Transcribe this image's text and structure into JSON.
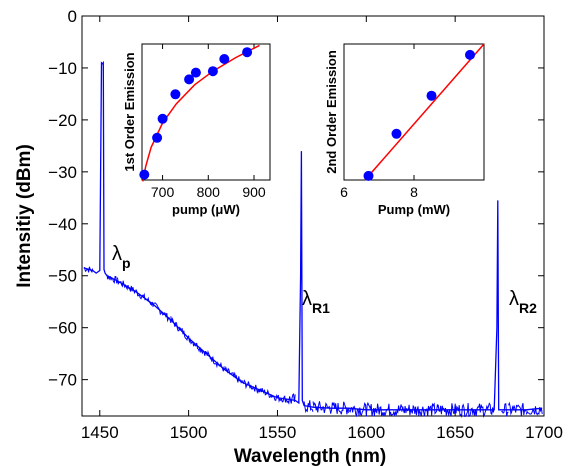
{
  "chart_data": [
    {
      "type": "line",
      "xlabel": "Wavelength (nm)",
      "ylabel": "Intensitiy (dBm)",
      "xlim": [
        1440,
        1700
      ],
      "ylim": [
        -77,
        0
      ],
      "xticks": [
        1450,
        1500,
        1550,
        1600,
        1650,
        1700
      ],
      "yticks": [
        0,
        -10,
        -20,
        -30,
        -40,
        -50,
        -60,
        -70
      ],
      "xtick_labels": [
        "1450",
        "1500",
        "1550",
        "1600",
        "1650",
        "1700"
      ],
      "ytick_labels": [
        "0",
        "−10",
        "−20",
        "−30",
        "−40",
        "−50",
        "−60",
        "−70"
      ],
      "line_color": "#0000ff",
      "series": [
        {
          "x": [
            1441,
            1446,
            1448,
            1450,
            1451,
            1451.6,
            1452,
            1452.4,
            1453,
            1454,
            1460,
            1470,
            1480,
            1490,
            1500,
            1510,
            1520,
            1530,
            1540,
            1550,
            1560,
            1562,
            1563,
            1563.5,
            1564,
            1565,
            1570,
            1580,
            1590,
            1600,
            1620,
            1640,
            1660,
            1672,
            1673.5,
            1674,
            1674.5,
            1676,
            1680,
            1690,
            1699
          ],
          "y": [
            -48.5,
            -49,
            -49.5,
            -49,
            -9,
            -9.2,
            -9,
            -48.8,
            -49.5,
            -50,
            -51,
            -53,
            -55.5,
            -58.5,
            -62,
            -65,
            -68,
            -70.5,
            -72,
            -73.5,
            -74,
            -74.5,
            -50,
            -26,
            -74,
            -75,
            -75.3,
            -75.5,
            -75.5,
            -75.8,
            -75.8,
            -75.8,
            -75.8,
            -75.8,
            -60,
            -35.5,
            -75.8,
            -75.8,
            -75.8,
            -75.8,
            -75.5
          ]
        }
      ],
      "annotations": [
        {
          "text": "λ",
          "sub": "p"
        },
        {
          "text": "λ",
          "sub": "R1"
        },
        {
          "text": "λ",
          "sub": "R2"
        }
      ]
    },
    {
      "type": "scatter",
      "xlabel": "pump (μW)",
      "ylabel": "1st Order Emission",
      "xlim": [
        655,
        935
      ],
      "ylim": [
        0,
        1
      ],
      "xticks": [
        700,
        800,
        900
      ],
      "xtick_labels": [
        "700",
        "800",
        "900"
      ],
      "marker_color": "#0000ff",
      "fit_color": "#ff0000",
      "points": [
        {
          "x": 660,
          "y": 0.04
        },
        {
          "x": 688,
          "y": 0.31
        },
        {
          "x": 700,
          "y": 0.45
        },
        {
          "x": 728,
          "y": 0.63
        },
        {
          "x": 758,
          "y": 0.74
        },
        {
          "x": 773,
          "y": 0.79
        },
        {
          "x": 810,
          "y": 0.8
        },
        {
          "x": 835,
          "y": 0.89
        },
        {
          "x": 885,
          "y": 0.94
        }
      ],
      "fit": [
        {
          "x": 657,
          "y": -0.02
        },
        {
          "x": 663,
          "y": 0.1
        },
        {
          "x": 675,
          "y": 0.24
        },
        {
          "x": 700,
          "y": 0.42
        },
        {
          "x": 730,
          "y": 0.56
        },
        {
          "x": 770,
          "y": 0.7
        },
        {
          "x": 810,
          "y": 0.8
        },
        {
          "x": 860,
          "y": 0.9
        },
        {
          "x": 912,
          "y": 0.99
        }
      ]
    },
    {
      "type": "scatter",
      "xlabel": "Pump (mW)",
      "ylabel": "2nd Order Emission",
      "xlim": [
        6,
        10
      ],
      "ylim": [
        0,
        1
      ],
      "xticks": [
        6,
        8
      ],
      "xtick_labels": [
        "6",
        "8"
      ],
      "marker_color": "#0000ff",
      "fit_color": "#ff0000",
      "points": [
        {
          "x": 6.7,
          "y": 0.03
        },
        {
          "x": 7.5,
          "y": 0.34
        },
        {
          "x": 8.5,
          "y": 0.62
        },
        {
          "x": 9.6,
          "y": 0.92
        }
      ],
      "fit": [
        {
          "x": 6.6,
          "y": 0.0
        },
        {
          "x": 10,
          "y": 1.0
        }
      ]
    }
  ]
}
